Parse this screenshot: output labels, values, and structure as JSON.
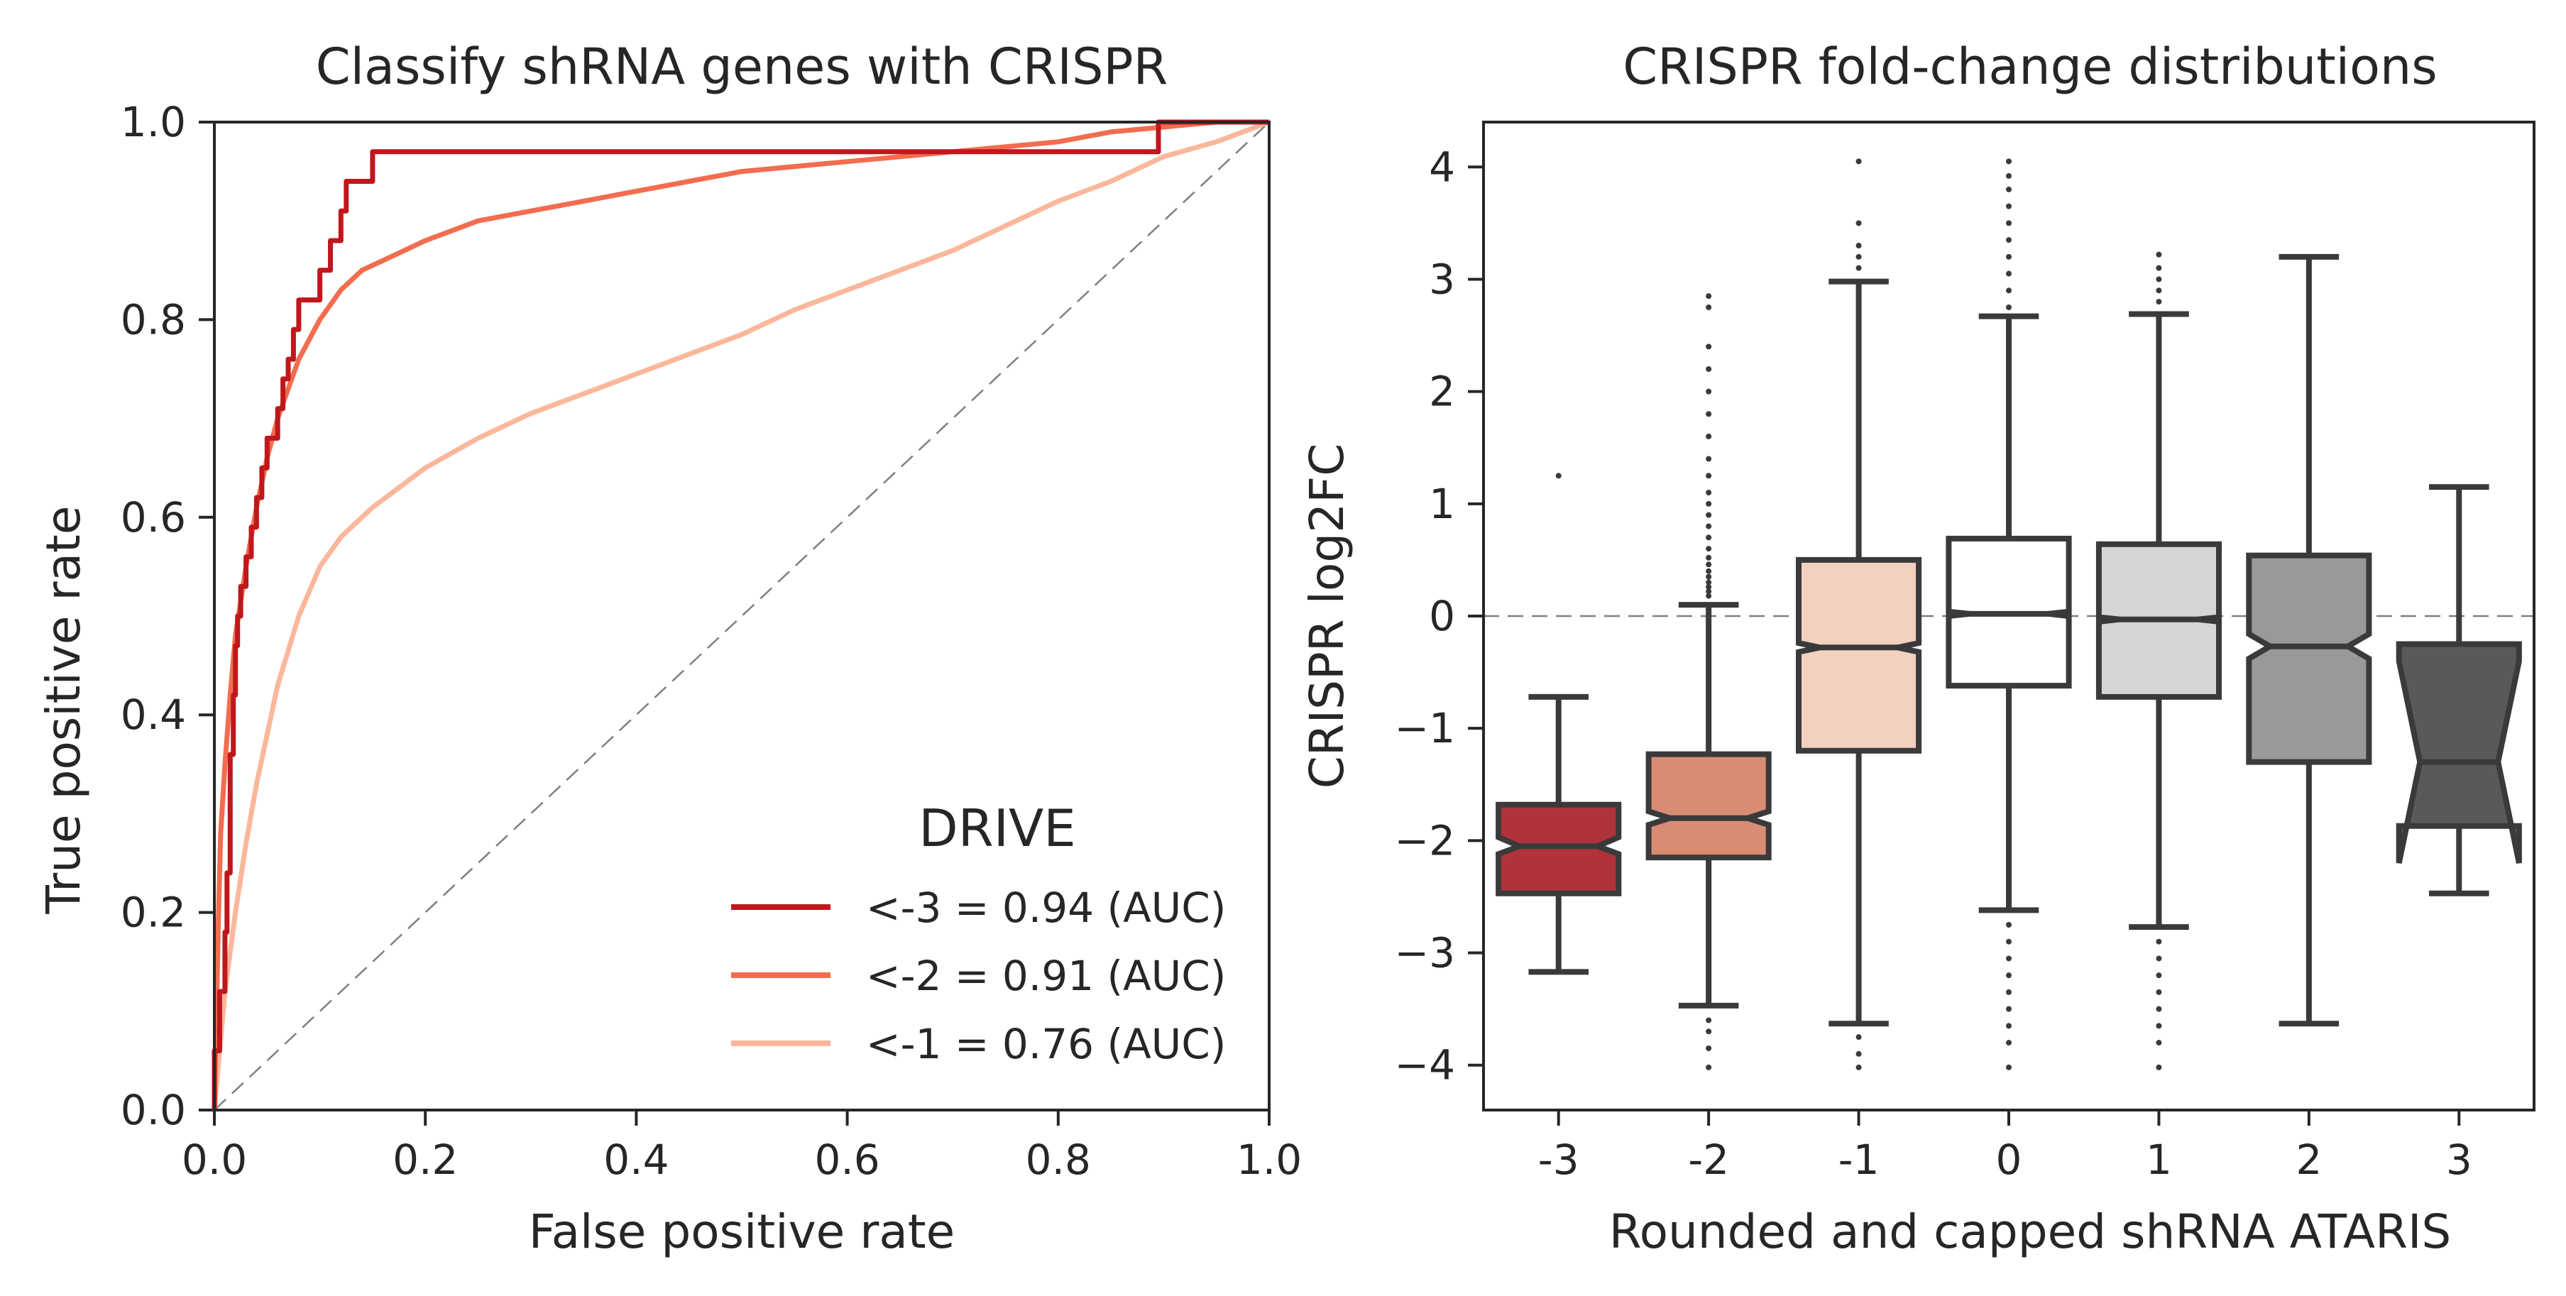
{
  "chart_data": [
    {
      "type": "line",
      "title": "Classify shRNA genes with CRISPR",
      "xlabel": "False positive rate",
      "ylabel": "True positive rate",
      "xlim": [
        0.0,
        1.0
      ],
      "ylim": [
        0.0,
        1.0
      ],
      "xticks": [
        "0.0",
        "0.2",
        "0.4",
        "0.6",
        "0.8",
        "1.0"
      ],
      "yticks": [
        "0.0",
        "0.2",
        "0.4",
        "0.6",
        "0.8",
        "1.0"
      ],
      "grid": false,
      "reference_line": {
        "style": "dashed",
        "from": [
          0,
          0
        ],
        "to": [
          1,
          1
        ],
        "color": "#7f7f7f"
      },
      "legend": {
        "title": "DRIVE",
        "placement": "lower-right"
      },
      "series": [
        {
          "name": "<-3 = 0.94 (AUC)",
          "color": "#c0171d",
          "step": true,
          "points": [
            [
              0,
              0
            ],
            [
              0,
              0.06
            ],
            [
              0.005,
              0.06
            ],
            [
              0.005,
              0.12
            ],
            [
              0.01,
              0.12
            ],
            [
              0.01,
              0.18
            ],
            [
              0.012,
              0.18
            ],
            [
              0.012,
              0.24
            ],
            [
              0.015,
              0.24
            ],
            [
              0.015,
              0.36
            ],
            [
              0.018,
              0.36
            ],
            [
              0.018,
              0.42
            ],
            [
              0.02,
              0.42
            ],
            [
              0.02,
              0.47
            ],
            [
              0.022,
              0.47
            ],
            [
              0.022,
              0.5
            ],
            [
              0.025,
              0.5
            ],
            [
              0.025,
              0.53
            ],
            [
              0.03,
              0.53
            ],
            [
              0.03,
              0.56
            ],
            [
              0.035,
              0.56
            ],
            [
              0.035,
              0.59
            ],
            [
              0.04,
              0.59
            ],
            [
              0.04,
              0.62
            ],
            [
              0.045,
              0.62
            ],
            [
              0.045,
              0.65
            ],
            [
              0.05,
              0.65
            ],
            [
              0.05,
              0.68
            ],
            [
              0.06,
              0.68
            ],
            [
              0.06,
              0.71
            ],
            [
              0.065,
              0.71
            ],
            [
              0.065,
              0.74
            ],
            [
              0.07,
              0.74
            ],
            [
              0.07,
              0.76
            ],
            [
              0.075,
              0.76
            ],
            [
              0.075,
              0.79
            ],
            [
              0.08,
              0.79
            ],
            [
              0.08,
              0.82
            ],
            [
              0.1,
              0.82
            ],
            [
              0.1,
              0.85
            ],
            [
              0.11,
              0.85
            ],
            [
              0.11,
              0.88
            ],
            [
              0.12,
              0.88
            ],
            [
              0.12,
              0.91
            ],
            [
              0.125,
              0.91
            ],
            [
              0.125,
              0.94
            ],
            [
              0.15,
              0.94
            ],
            [
              0.15,
              0.97
            ],
            [
              0.895,
              0.97
            ],
            [
              0.895,
              1.0
            ],
            [
              1.0,
              1.0
            ]
          ]
        },
        {
          "name": "<-2 = 0.91 (AUC)",
          "color": "#f26d4f",
          "step": false,
          "points": [
            [
              0,
              0
            ],
            [
              0.002,
              0.1
            ],
            [
              0.004,
              0.2
            ],
            [
              0.006,
              0.28
            ],
            [
              0.01,
              0.35
            ],
            [
              0.015,
              0.42
            ],
            [
              0.02,
              0.48
            ],
            [
              0.03,
              0.55
            ],
            [
              0.04,
              0.61
            ],
            [
              0.05,
              0.66
            ],
            [
              0.06,
              0.7
            ],
            [
              0.07,
              0.73
            ],
            [
              0.08,
              0.76
            ],
            [
              0.1,
              0.8
            ],
            [
              0.12,
              0.83
            ],
            [
              0.14,
              0.85
            ],
            [
              0.16,
              0.86
            ],
            [
              0.2,
              0.88
            ],
            [
              0.25,
              0.9
            ],
            [
              0.3,
              0.91
            ],
            [
              0.35,
              0.92
            ],
            [
              0.4,
              0.93
            ],
            [
              0.45,
              0.94
            ],
            [
              0.5,
              0.95
            ],
            [
              0.55,
              0.955
            ],
            [
              0.6,
              0.96
            ],
            [
              0.7,
              0.97
            ],
            [
              0.8,
              0.98
            ],
            [
              0.85,
              0.99
            ],
            [
              0.9,
              0.995
            ],
            [
              0.95,
              1.0
            ],
            [
              1.0,
              1.0
            ]
          ]
        },
        {
          "name": "<-1 = 0.76 (AUC)",
          "color": "#fbb79b",
          "step": false,
          "points": [
            [
              0,
              0
            ],
            [
              0.005,
              0.06
            ],
            [
              0.01,
              0.12
            ],
            [
              0.02,
              0.2
            ],
            [
              0.03,
              0.27
            ],
            [
              0.04,
              0.33
            ],
            [
              0.05,
              0.38
            ],
            [
              0.06,
              0.43
            ],
            [
              0.08,
              0.5
            ],
            [
              0.1,
              0.55
            ],
            [
              0.12,
              0.58
            ],
            [
              0.15,
              0.61
            ],
            [
              0.2,
              0.65
            ],
            [
              0.25,
              0.68
            ],
            [
              0.3,
              0.705
            ],
            [
              0.35,
              0.725
            ],
            [
              0.4,
              0.745
            ],
            [
              0.45,
              0.765
            ],
            [
              0.5,
              0.785
            ],
            [
              0.55,
              0.81
            ],
            [
              0.6,
              0.83
            ],
            [
              0.65,
              0.85
            ],
            [
              0.7,
              0.87
            ],
            [
              0.75,
              0.895
            ],
            [
              0.8,
              0.92
            ],
            [
              0.85,
              0.94
            ],
            [
              0.9,
              0.965
            ],
            [
              0.95,
              0.98
            ],
            [
              1.0,
              1.0
            ]
          ]
        }
      ]
    },
    {
      "type": "box",
      "title": "CRISPR fold-change distributions",
      "xlabel": "Rounded and capped shRNA ATARIS",
      "ylabel": "CRISPR log2FC",
      "ylim": [
        -4.4,
        4.4
      ],
      "yticks": [
        "4",
        "3",
        "2",
        "1",
        "0",
        "−1",
        "−2",
        "−3",
        "−4"
      ],
      "categories": [
        "-3",
        "-2",
        "-1",
        "0",
        "1",
        "2",
        "3"
      ],
      "notched": true,
      "grid": false,
      "reference_line": {
        "style": "dashed",
        "y": 0,
        "color": "#7f7f7f"
      },
      "boxes": [
        {
          "category": "-3",
          "color": "#b0333a",
          "q1": -2.47,
          "median": -2.05,
          "q3": -1.68,
          "whisker_low": -3.17,
          "whisker_high": -0.72,
          "notch_low": -2.12,
          "notch_high": -1.97,
          "outliers": [
            1.25
          ]
        },
        {
          "category": "-2",
          "color": "#d98c74",
          "q1": -2.15,
          "median": -1.8,
          "q3": -1.23,
          "whisker_low": -3.47,
          "whisker_high": 0.1,
          "notch_low": -1.86,
          "notch_high": -1.74,
          "outliers": [
            0.18,
            0.22,
            0.26,
            0.3,
            0.35,
            0.4,
            0.46,
            0.52,
            0.6,
            0.7,
            0.8,
            0.9,
            1.0,
            1.1,
            1.25,
            1.4,
            1.6,
            1.8,
            2.0,
            2.2,
            2.4,
            2.75,
            2.85,
            -3.6,
            -3.7,
            -3.85,
            -4.02
          ]
        },
        {
          "category": "-1",
          "color": "#f2d1c0",
          "q1": -1.2,
          "median": -0.28,
          "q3": 0.5,
          "whisker_low": -3.63,
          "whisker_high": 2.98,
          "notch_low": -0.32,
          "notch_high": -0.24,
          "outliers": [
            3.1,
            3.2,
            3.3,
            3.5,
            4.05,
            -3.75,
            -3.9,
            -4.02
          ]
        },
        {
          "category": "0",
          "color": "#ffffff",
          "q1": -0.62,
          "median": 0.02,
          "q3": 0.69,
          "whisker_low": -2.62,
          "whisker_high": 2.67,
          "notch_low": 0.0,
          "notch_high": 0.04,
          "outliers": [
            2.75,
            2.9,
            3.05,
            3.2,
            3.35,
            3.5,
            3.65,
            3.8,
            3.92,
            4.05,
            -2.75,
            -2.9,
            -3.05,
            -3.2,
            -3.35,
            -3.5,
            -3.65,
            -3.8,
            -4.02
          ]
        },
        {
          "category": "1",
          "color": "#d6d6d6",
          "q1": -0.72,
          "median": -0.03,
          "q3": 0.64,
          "whisker_low": -2.77,
          "whisker_high": 2.69,
          "notch_low": -0.05,
          "notch_high": -0.01,
          "outliers": [
            2.8,
            2.9,
            3.0,
            3.1,
            3.22,
            -2.9,
            -3.05,
            -3.2,
            -3.35,
            -3.5,
            -3.65,
            -3.8,
            -4.02
          ]
        },
        {
          "category": "2",
          "color": "#999999",
          "q1": -1.3,
          "median": -0.27,
          "q3": 0.54,
          "whisker_low": -3.63,
          "whisker_high": 3.2,
          "notch_low": -0.38,
          "notch_high": -0.16,
          "outliers": []
        },
        {
          "category": "3",
          "color": "#595959",
          "q1": -1.87,
          "median": -1.3,
          "q3": -0.25,
          "whisker_low": -2.47,
          "whisker_high": 1.15,
          "notch_low": -2.2,
          "notch_high": -0.4,
          "outliers": []
        }
      ]
    }
  ]
}
